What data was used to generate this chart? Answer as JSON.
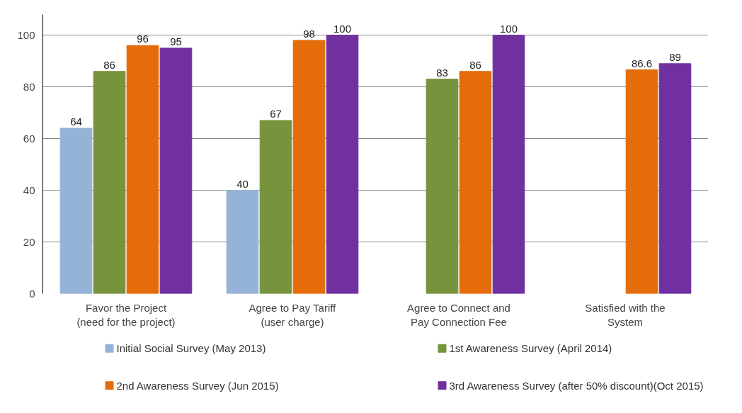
{
  "chart_data": {
    "type": "bar",
    "categories": [
      "Favor the Project\n(need for the project)",
      "Agree to Pay Tariff\n(user charge)",
      "Agree to Connect and\nPay Connection Fee",
      "Satisfied with the\nSystem"
    ],
    "series": [
      {
        "name": "Initial Social Survey (May 2013)",
        "color": "#95b3d7",
        "values": [
          64,
          40,
          null,
          null
        ]
      },
      {
        "name": "1st Awareness Survey (April 2014)",
        "color": "#77933c",
        "values": [
          86,
          67,
          83,
          null
        ]
      },
      {
        "name": "2nd Awareness Survey (Jun 2015)",
        "color": "#e46c0a",
        "values": [
          96,
          98,
          86,
          86.6
        ]
      },
      {
        "name": "3rd Awareness Survey (after 50% discount)(Oct 2015)",
        "color": "#7030a0",
        "values": [
          95,
          100,
          100,
          89
        ]
      }
    ],
    "ylim": [
      0,
      100
    ],
    "yticks": [
      0,
      20,
      40,
      60,
      80,
      100
    ],
    "grid": "y",
    "data_labels": true,
    "legend": "bottom"
  }
}
